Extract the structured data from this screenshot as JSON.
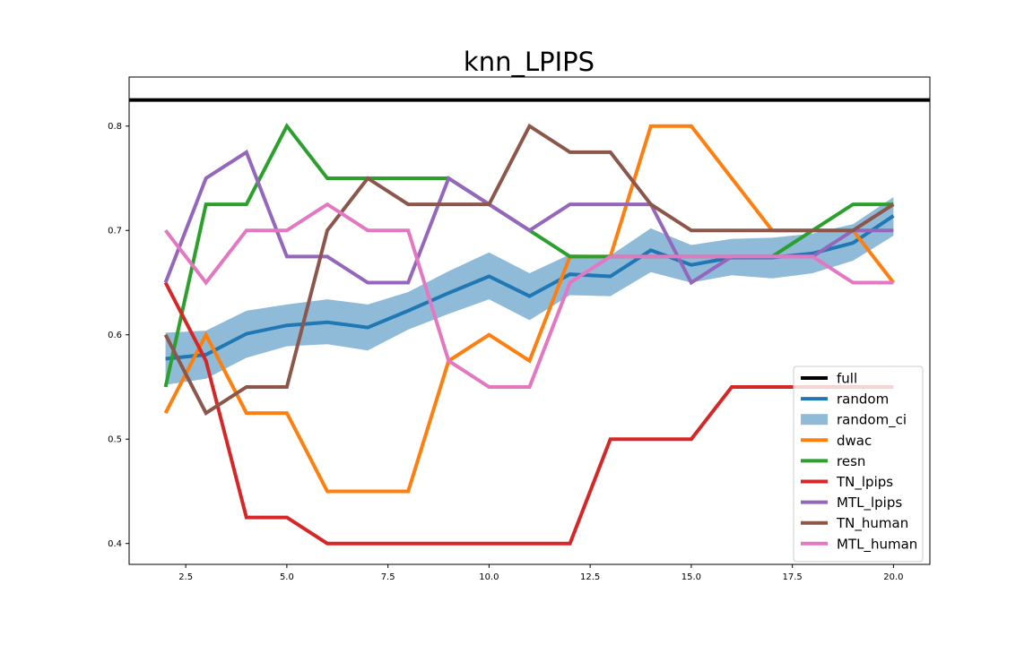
{
  "chart_data": {
    "type": "line",
    "title": "knn_LPIPS",
    "xlabel": "",
    "ylabel": "",
    "xlim": [
      1.1,
      20.9
    ],
    "ylim": [
      0.38,
      0.847
    ],
    "xticks": [
      2.5,
      5.0,
      7.5,
      10.0,
      12.5,
      15.0,
      17.5,
      20.0
    ],
    "xtick_labels": [
      "2.5",
      "5.0",
      "7.5",
      "10.0",
      "12.5",
      "15.0",
      "17.5",
      "20.0"
    ],
    "yticks": [
      0.4,
      0.5,
      0.6,
      0.7,
      0.8
    ],
    "ytick_labels": [
      "0.4",
      "0.5",
      "0.6",
      "0.7",
      "0.8"
    ],
    "grid": false,
    "legend_position": "lower-right",
    "x": [
      2,
      3,
      4,
      5,
      6,
      7,
      8,
      9,
      10,
      11,
      12,
      13,
      14,
      15,
      16,
      17,
      18,
      19,
      20
    ],
    "full": {
      "name": "full",
      "value": 0.825,
      "color": "#000000"
    },
    "random_ci": {
      "name": "random_ci",
      "color": "#1f77b4",
      "lower": [
        0.552,
        0.558,
        0.578,
        0.589,
        0.591,
        0.585,
        0.605,
        0.62,
        0.634,
        0.614,
        0.638,
        0.637,
        0.66,
        0.65,
        0.657,
        0.654,
        0.659,
        0.671,
        0.695
      ],
      "upper": [
        0.602,
        0.604,
        0.623,
        0.629,
        0.634,
        0.629,
        0.641,
        0.661,
        0.679,
        0.659,
        0.677,
        0.676,
        0.702,
        0.686,
        0.692,
        0.693,
        0.697,
        0.706,
        0.732
      ]
    },
    "series": [
      {
        "name": "random",
        "color": "#1f77b4",
        "values": [
          0.577,
          0.581,
          0.601,
          0.609,
          0.612,
          0.607,
          0.623,
          0.64,
          0.656,
          0.637,
          0.658,
          0.656,
          0.681,
          0.667,
          0.674,
          0.674,
          0.678,
          0.688,
          0.714
        ]
      },
      {
        "name": "dwac",
        "color": "#ff7f0e",
        "values": [
          0.525,
          0.6,
          0.525,
          0.525,
          0.45,
          0.45,
          0.45,
          0.575,
          0.6,
          0.575,
          0.675,
          0.675,
          0.8,
          0.8,
          0.75,
          0.7,
          0.7,
          0.7,
          0.65
        ]
      },
      {
        "name": "resn",
        "color": "#2ca02c",
        "values": [
          0.55,
          0.725,
          0.725,
          0.8,
          0.75,
          0.75,
          0.75,
          0.75,
          0.725,
          0.7,
          0.675,
          0.675,
          0.675,
          0.675,
          0.675,
          0.675,
          0.7,
          0.725,
          0.725
        ]
      },
      {
        "name": "TN_lpips",
        "color": "#d62728",
        "values": [
          0.65,
          0.575,
          0.425,
          0.425,
          0.4,
          0.4,
          0.4,
          0.4,
          0.4,
          0.4,
          0.4,
          0.5,
          0.5,
          0.5,
          0.55,
          0.55,
          0.55,
          0.55,
          0.55
        ]
      },
      {
        "name": "MTL_lpips",
        "color": "#9467bd",
        "values": [
          0.65,
          0.75,
          0.775,
          0.675,
          0.675,
          0.65,
          0.65,
          0.75,
          0.725,
          0.7,
          0.725,
          0.725,
          0.725,
          0.65,
          0.675,
          0.675,
          0.675,
          0.7,
          0.7
        ]
      },
      {
        "name": "TN_human",
        "color": "#8c564b",
        "values": [
          0.6,
          0.525,
          0.55,
          0.55,
          0.7,
          0.75,
          0.725,
          0.725,
          0.725,
          0.8,
          0.775,
          0.775,
          0.725,
          0.7,
          0.7,
          0.7,
          0.7,
          0.7,
          0.725
        ]
      },
      {
        "name": "MTL_human",
        "color": "#e377c2",
        "values": [
          0.7,
          0.65,
          0.7,
          0.7,
          0.725,
          0.7,
          0.7,
          0.575,
          0.55,
          0.55,
          0.65,
          0.675,
          0.675,
          0.675,
          0.675,
          0.675,
          0.675,
          0.65,
          0.65
        ]
      }
    ],
    "legend": [
      "full",
      "random",
      "random_ci",
      "dwac",
      "resn",
      "TN_lpips",
      "MTL_lpips",
      "TN_human",
      "MTL_human"
    ]
  }
}
